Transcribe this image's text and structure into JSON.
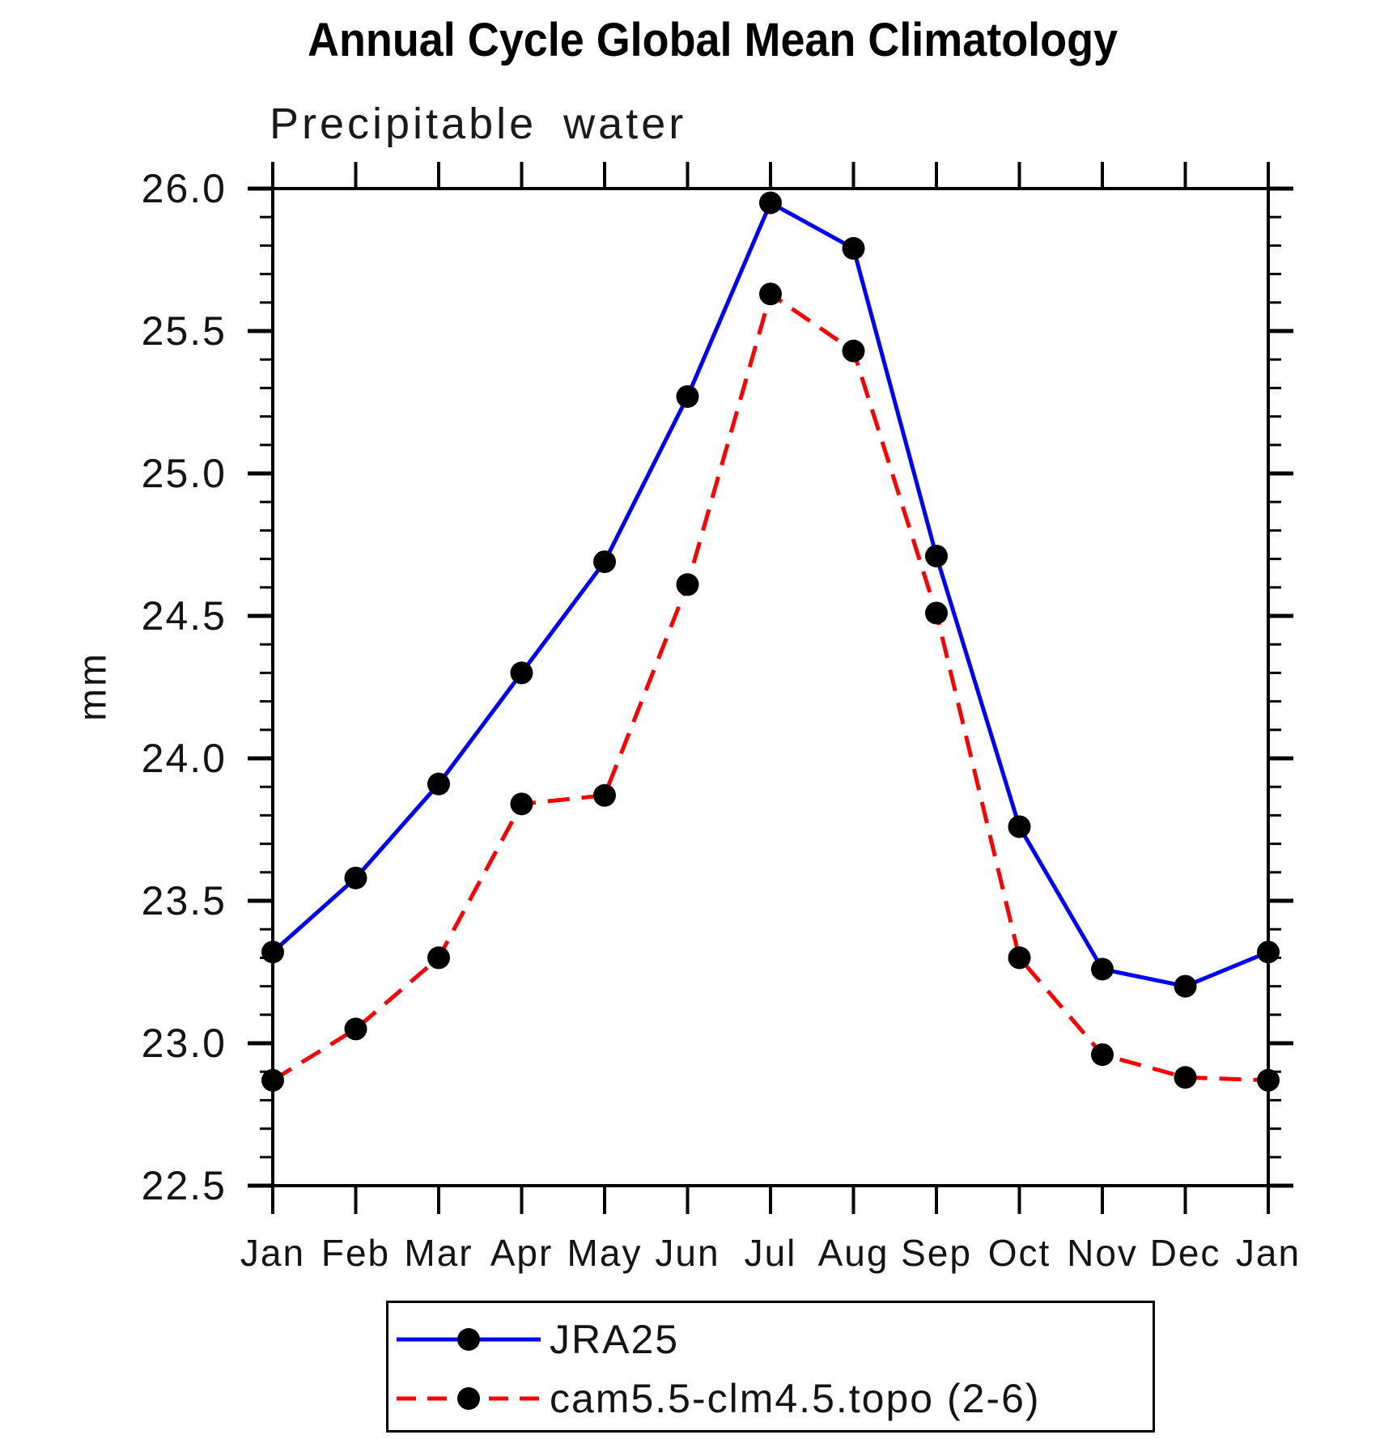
{
  "title": "Annual Cycle Global Mean Climatology",
  "subtitle": "Precipitable water",
  "chart_data": {
    "type": "line",
    "title": "Annual Cycle Global Mean Climatology",
    "subtitle": "Precipitable water",
    "ylabel": "mm",
    "categories": [
      "Jan",
      "Feb",
      "Mar",
      "Apr",
      "May",
      "Jun",
      "Jul",
      "Aug",
      "Sep",
      "Oct",
      "Nov",
      "Dec",
      "Jan"
    ],
    "ylim": [
      22.5,
      26.0
    ],
    "ytick_step": 0.5,
    "ytick_minor_step": 0.1,
    "ytick_labels": [
      "22.5",
      "23.0",
      "23.5",
      "24.0",
      "24.5",
      "25.0",
      "25.5",
      "26.0"
    ],
    "grid": false,
    "legend_position": "bottom",
    "series": [
      {
        "name": "JRA25",
        "color": "#0000ff",
        "style": "solid",
        "marker": "circle",
        "marker_color": "#000000",
        "values": [
          23.32,
          23.58,
          23.91,
          24.3,
          24.69,
          25.27,
          25.95,
          25.79,
          24.71,
          23.76,
          23.26,
          23.2,
          23.32
        ]
      },
      {
        "name": "cam5.5-clm4.5.topo (2-6)",
        "color": "#ff0000",
        "style": "dashed",
        "marker": "circle",
        "marker_color": "#000000",
        "values": [
          22.87,
          23.05,
          23.3,
          23.84,
          23.87,
          24.61,
          25.63,
          25.43,
          24.51,
          23.3,
          22.96,
          22.88,
          22.87
        ]
      }
    ]
  }
}
